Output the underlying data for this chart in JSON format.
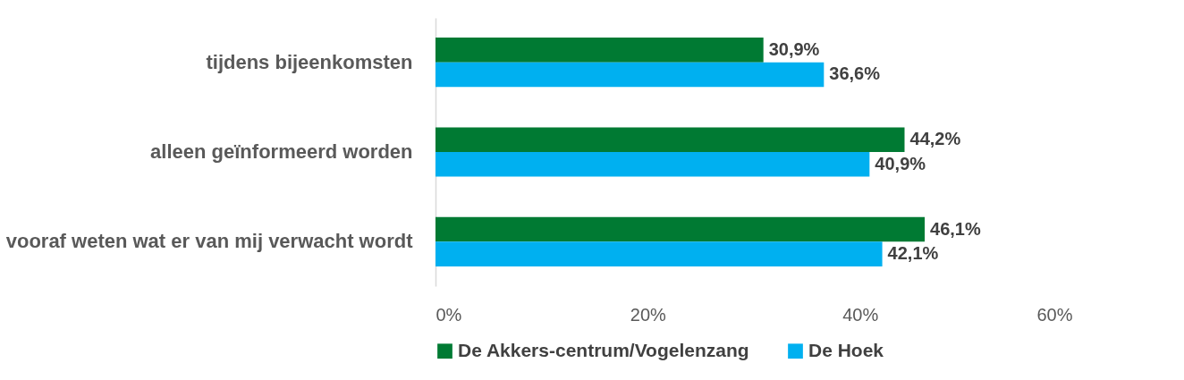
{
  "chart_data": {
    "type": "bar",
    "orientation": "horizontal",
    "categories": [
      "tijdens bijeenkomsten",
      "alleen geïnformeerd worden",
      "vooraf weten wat er van mij verwacht wordt"
    ],
    "series": [
      {
        "name": "De Akkers-centrum/Vogelenzang",
        "color": "#007a33",
        "values": [
          30.9,
          44.2,
          46.1
        ],
        "value_labels": [
          "30,9%",
          "44,2%",
          "46,1%"
        ]
      },
      {
        "name": "De Hoek",
        "color": "#00b0f0",
        "values": [
          36.6,
          40.9,
          42.1
        ],
        "value_labels": [
          "36,6%",
          "40,9%",
          "42,1%"
        ]
      }
    ],
    "xlim": [
      0,
      60
    ],
    "xticks": [
      {
        "value": 0,
        "label": "0%"
      },
      {
        "value": 20,
        "label": "20%"
      },
      {
        "value": 40,
        "label": "40%"
      },
      {
        "value": 60,
        "label": "60%"
      }
    ],
    "grid": false,
    "legend": "bottom"
  }
}
